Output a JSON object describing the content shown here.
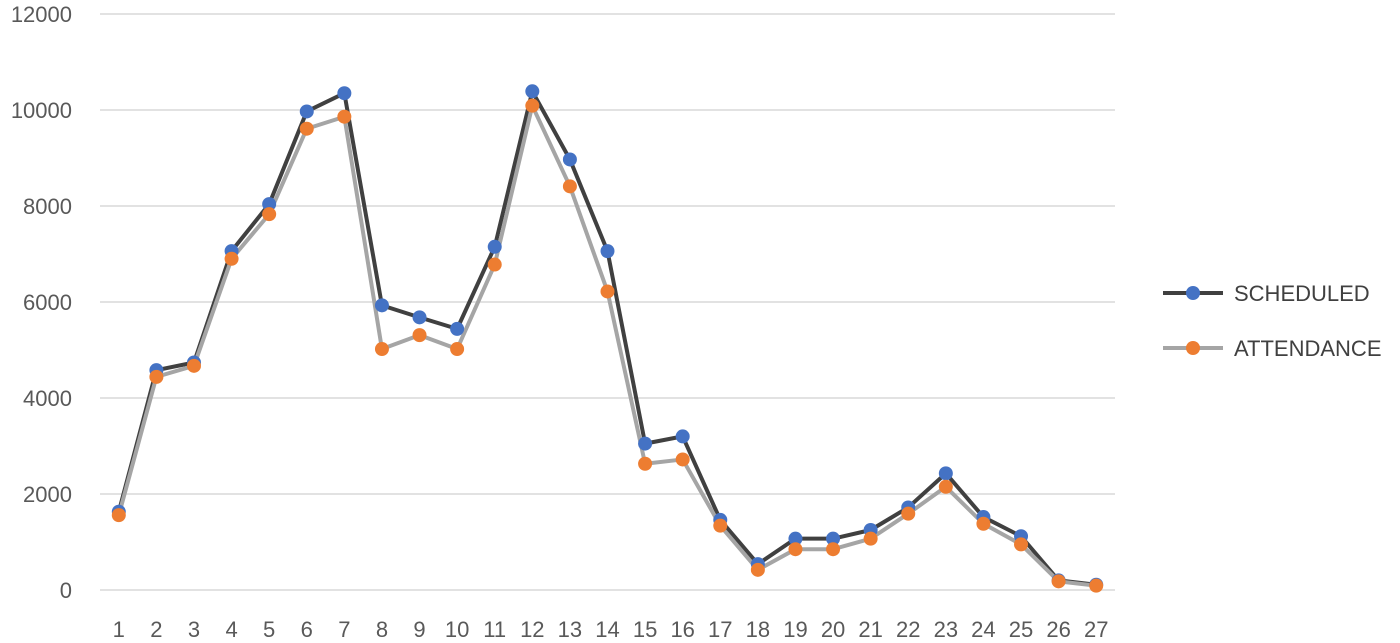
{
  "chart_data": {
    "type": "line",
    "title": "",
    "xlabel": "",
    "ylabel": "",
    "ylim": [
      0,
      12000
    ],
    "yticks": [
      0,
      2000,
      4000,
      6000,
      8000,
      10000,
      12000
    ],
    "x": [
      1,
      2,
      3,
      4,
      5,
      6,
      7,
      8,
      9,
      10,
      11,
      12,
      13,
      14,
      15,
      16,
      17,
      18,
      19,
      20,
      21,
      22,
      23,
      24,
      25,
      26,
      27
    ],
    "grid": "horizontal",
    "legend_position": "right",
    "series": [
      {
        "name": "SCHEDULED",
        "line_color": "#404040",
        "marker_color": "#4472C4",
        "values": [
          1630,
          4580,
          4740,
          7060,
          8040,
          9970,
          10350,
          5930,
          5680,
          5440,
          7150,
          10390,
          8970,
          7060,
          3050,
          3200,
          1460,
          540,
          1070,
          1070,
          1250,
          1720,
          2430,
          1520,
          1120,
          200,
          110
        ]
      },
      {
        "name": "ATTENDANCE",
        "line_color": "#A5A5A5",
        "marker_color": "#ED7D31",
        "values": [
          1560,
          4440,
          4670,
          6900,
          7830,
          9610,
          9860,
          5020,
          5310,
          5020,
          6780,
          10090,
          8410,
          6220,
          2630,
          2720,
          1340,
          420,
          850,
          850,
          1070,
          1590,
          2150,
          1380,
          950,
          180,
          90
        ]
      }
    ]
  }
}
